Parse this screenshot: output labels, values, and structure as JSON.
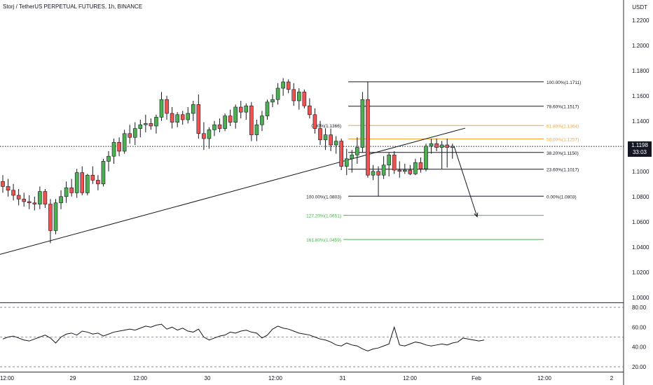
{
  "header": {
    "title": "Storj / TetherUS PERPETUAL FUTURES, 1h, BINANCE",
    "currency": "USDT"
  },
  "price_tag": {
    "price": "1.1198",
    "countdown": "33:03"
  },
  "chart_data": [
    {
      "type": "candlestick",
      "title": "Storj / TetherUS PERPETUAL FUTURES, 1h, BINANCE",
      "y_unit": "USDT",
      "y_ticks": [
        "1.2200",
        "1.2000",
        "1.1800",
        "1.1600",
        "1.1400",
        "1.1200",
        "1.1000",
        "1.0800",
        "1.0600",
        "1.0400",
        "1.0200",
        "1.0000"
      ],
      "ylim": [
        0.996,
        1.236
      ],
      "x_ticks": [
        "12:00",
        "29",
        "12:00",
        "30",
        "12:00",
        "31",
        "12:00",
        "Feb",
        "12:00",
        "2"
      ],
      "current_price": 1.1198,
      "colors": {
        "up": "#26a69a",
        "up_body": "#4caf50",
        "down": "#ef5350",
        "fib_highlight": "#f7a531",
        "fib_extension": "#4caf50",
        "line": "#131722"
      },
      "candles": [
        {
          "o": 1.092,
          "h": 1.097,
          "l": 1.083,
          "c": 1.088
        },
        {
          "o": 1.088,
          "h": 1.094,
          "l": 1.08,
          "c": 1.085
        },
        {
          "o": 1.085,
          "h": 1.09,
          "l": 1.077,
          "c": 1.081
        },
        {
          "o": 1.081,
          "h": 1.086,
          "l": 1.073,
          "c": 1.078
        },
        {
          "o": 1.078,
          "h": 1.083,
          "l": 1.072,
          "c": 1.076
        },
        {
          "o": 1.076,
          "h": 1.081,
          "l": 1.07,
          "c": 1.075
        },
        {
          "o": 1.075,
          "h": 1.08,
          "l": 1.069,
          "c": 1.074
        },
        {
          "o": 1.074,
          "h": 1.088,
          "l": 1.07,
          "c": 1.084
        },
        {
          "o": 1.084,
          "h": 1.086,
          "l": 1.071,
          "c": 1.074
        },
        {
          "o": 1.074,
          "h": 1.078,
          "l": 1.043,
          "c": 1.053
        },
        {
          "o": 1.053,
          "h": 1.078,
          "l": 1.05,
          "c": 1.075
        },
        {
          "o": 1.075,
          "h": 1.085,
          "l": 1.07,
          "c": 1.08
        },
        {
          "o": 1.08,
          "h": 1.092,
          "l": 1.075,
          "c": 1.087
        },
        {
          "o": 1.087,
          "h": 1.094,
          "l": 1.08,
          "c": 1.083
        },
        {
          "o": 1.083,
          "h": 1.102,
          "l": 1.079,
          "c": 1.099
        },
        {
          "o": 1.099,
          "h": 1.104,
          "l": 1.081,
          "c": 1.083
        },
        {
          "o": 1.083,
          "h": 1.098,
          "l": 1.081,
          "c": 1.097
        },
        {
          "o": 1.097,
          "h": 1.104,
          "l": 1.09,
          "c": 1.093
        },
        {
          "o": 1.093,
          "h": 1.097,
          "l": 1.085,
          "c": 1.09
        },
        {
          "o": 1.09,
          "h": 1.11,
          "l": 1.088,
          "c": 1.108
        },
        {
          "o": 1.108,
          "h": 1.116,
          "l": 1.1,
          "c": 1.112
        },
        {
          "o": 1.112,
          "h": 1.126,
          "l": 1.106,
          "c": 1.123
        },
        {
          "o": 1.123,
          "h": 1.127,
          "l": 1.112,
          "c": 1.116
        },
        {
          "o": 1.116,
          "h": 1.133,
          "l": 1.114,
          "c": 1.13
        },
        {
          "o": 1.13,
          "h": 1.137,
          "l": 1.122,
          "c": 1.127
        },
        {
          "o": 1.127,
          "h": 1.139,
          "l": 1.121,
          "c": 1.134
        },
        {
          "o": 1.134,
          "h": 1.141,
          "l": 1.127,
          "c": 1.137
        },
        {
          "o": 1.137,
          "h": 1.145,
          "l": 1.131,
          "c": 1.138
        },
        {
          "o": 1.138,
          "h": 1.142,
          "l": 1.133,
          "c": 1.136
        },
        {
          "o": 1.136,
          "h": 1.145,
          "l": 1.13,
          "c": 1.143
        },
        {
          "o": 1.143,
          "h": 1.163,
          "l": 1.14,
          "c": 1.157
        },
        {
          "o": 1.157,
          "h": 1.16,
          "l": 1.141,
          "c": 1.146
        },
        {
          "o": 1.146,
          "h": 1.151,
          "l": 1.134,
          "c": 1.139
        },
        {
          "o": 1.139,
          "h": 1.147,
          "l": 1.135,
          "c": 1.145
        },
        {
          "o": 1.145,
          "h": 1.148,
          "l": 1.137,
          "c": 1.141
        },
        {
          "o": 1.141,
          "h": 1.151,
          "l": 1.138,
          "c": 1.146
        },
        {
          "o": 1.146,
          "h": 1.156,
          "l": 1.14,
          "c": 1.153
        },
        {
          "o": 1.153,
          "h": 1.161,
          "l": 1.126,
          "c": 1.13
        },
        {
          "o": 1.13,
          "h": 1.139,
          "l": 1.117,
          "c": 1.126
        },
        {
          "o": 1.126,
          "h": 1.135,
          "l": 1.118,
          "c": 1.133
        },
        {
          "o": 1.133,
          "h": 1.14,
          "l": 1.128,
          "c": 1.137
        },
        {
          "o": 1.137,
          "h": 1.142,
          "l": 1.131,
          "c": 1.134
        },
        {
          "o": 1.134,
          "h": 1.146,
          "l": 1.132,
          "c": 1.144
        },
        {
          "o": 1.144,
          "h": 1.149,
          "l": 1.136,
          "c": 1.139
        },
        {
          "o": 1.139,
          "h": 1.153,
          "l": 1.134,
          "c": 1.151
        },
        {
          "o": 1.151,
          "h": 1.156,
          "l": 1.142,
          "c": 1.147
        },
        {
          "o": 1.147,
          "h": 1.154,
          "l": 1.141,
          "c": 1.152
        },
        {
          "o": 1.152,
          "h": 1.155,
          "l": 1.124,
          "c": 1.129
        },
        {
          "o": 1.129,
          "h": 1.141,
          "l": 1.124,
          "c": 1.137
        },
        {
          "o": 1.137,
          "h": 1.148,
          "l": 1.132,
          "c": 1.144
        },
        {
          "o": 1.144,
          "h": 1.157,
          "l": 1.141,
          "c": 1.155
        },
        {
          "o": 1.155,
          "h": 1.161,
          "l": 1.151,
          "c": 1.157
        },
        {
          "o": 1.157,
          "h": 1.17,
          "l": 1.153,
          "c": 1.166
        },
        {
          "o": 1.166,
          "h": 1.174,
          "l": 1.16,
          "c": 1.171
        },
        {
          "o": 1.171,
          "h": 1.173,
          "l": 1.162,
          "c": 1.165
        },
        {
          "o": 1.165,
          "h": 1.17,
          "l": 1.152,
          "c": 1.156
        },
        {
          "o": 1.156,
          "h": 1.166,
          "l": 1.149,
          "c": 1.163
        },
        {
          "o": 1.163,
          "h": 1.165,
          "l": 1.15,
          "c": 1.152
        },
        {
          "o": 1.152,
          "h": 1.158,
          "l": 1.142,
          "c": 1.145
        },
        {
          "o": 1.145,
          "h": 1.15,
          "l": 1.13,
          "c": 1.134
        },
        {
          "o": 1.134,
          "h": 1.14,
          "l": 1.121,
          "c": 1.125
        },
        {
          "o": 1.125,
          "h": 1.134,
          "l": 1.117,
          "c": 1.129
        },
        {
          "o": 1.129,
          "h": 1.134,
          "l": 1.116,
          "c": 1.121
        },
        {
          "o": 1.121,
          "h": 1.128,
          "l": 1.114,
          "c": 1.124
        },
        {
          "o": 1.124,
          "h": 1.126,
          "l": 1.101,
          "c": 1.104
        },
        {
          "o": 1.104,
          "h": 1.118,
          "l": 1.097,
          "c": 1.11
        },
        {
          "o": 1.11,
          "h": 1.117,
          "l": 1.099,
          "c": 1.113
        },
        {
          "o": 1.113,
          "h": 1.127,
          "l": 1.106,
          "c": 1.119
        },
        {
          "o": 1.119,
          "h": 1.163,
          "l": 1.115,
          "c": 1.157
        },
        {
          "o": 1.157,
          "h": 1.171,
          "l": 1.095,
          "c": 1.097
        },
        {
          "o": 1.097,
          "h": 1.105,
          "l": 1.093,
          "c": 1.1
        },
        {
          "o": 1.1,
          "h": 1.104,
          "l": 1.08,
          "c": 1.097
        },
        {
          "o": 1.097,
          "h": 1.112,
          "l": 1.094,
          "c": 1.105
        },
        {
          "o": 1.105,
          "h": 1.115,
          "l": 1.096,
          "c": 1.113
        },
        {
          "o": 1.113,
          "h": 1.116,
          "l": 1.098,
          "c": 1.101
        },
        {
          "o": 1.101,
          "h": 1.108,
          "l": 1.095,
          "c": 1.1
        },
        {
          "o": 1.1,
          "h": 1.106,
          "l": 1.098,
          "c": 1.101
        },
        {
          "o": 1.101,
          "h": 1.105,
          "l": 1.097,
          "c": 1.098
        },
        {
          "o": 1.098,
          "h": 1.11,
          "l": 1.097,
          "c": 1.107
        },
        {
          "o": 1.107,
          "h": 1.111,
          "l": 1.099,
          "c": 1.102
        },
        {
          "o": 1.102,
          "h": 1.122,
          "l": 1.1,
          "c": 1.12
        },
        {
          "o": 1.12,
          "h": 1.126,
          "l": 1.114,
          "c": 1.122
        },
        {
          "o": 1.122,
          "h": 1.126,
          "l": 1.116,
          "c": 1.119
        },
        {
          "o": 1.119,
          "h": 1.124,
          "l": 1.102,
          "c": 1.121
        },
        {
          "o": 1.121,
          "h": 1.126,
          "l": 1.103,
          "c": 1.119
        },
        {
          "o": 1.119,
          "h": 1.122,
          "l": 1.11,
          "c": 1.12
        }
      ],
      "trendline": [
        {
          "from": 1.0341,
          "to": 1.1343
        }
      ],
      "fib_retracement": [
        {
          "label": "100.00%(1.1711)",
          "value": 1.1711,
          "style": "black"
        },
        {
          "label": "78.60%(1.1517)",
          "value": 1.1517,
          "style": "black"
        },
        {
          "label": "61.80%(1.1364)",
          "value": 1.1364,
          "style": "orange"
        },
        {
          "label": "50.00%(1.1257)",
          "value": 1.1257,
          "style": "orange"
        },
        {
          "label": "38.20%(1.1150)",
          "value": 1.115,
          "style": "black"
        },
        {
          "label": "23.60%(1.1017)",
          "value": 1.1017,
          "style": "black"
        },
        {
          "label": "0.00%(1.0803)",
          "value": 1.0803,
          "style": "black"
        }
      ],
      "fib_extension": [
        {
          "label": "0.00%(1.1366)",
          "value": 1.1366,
          "style": "black"
        },
        {
          "label": "100.00%(1.0803)",
          "value": 1.0803,
          "style": "black"
        },
        {
          "label": "127.20%(1.0651)",
          "value": 1.0651,
          "style": "green"
        },
        {
          "label": "161.80%(1.0459)",
          "value": 1.0459,
          "style": "green"
        }
      ],
      "arrow": {
        "from": 1.12,
        "to": 1.064
      }
    },
    {
      "type": "line",
      "title": "",
      "y_ticks": [
        "80.00",
        "60.00",
        "40.00",
        "20.00"
      ],
      "ylim": [
        15,
        85
      ],
      "levels": [
        80,
        50,
        20
      ],
      "values": [
        48,
        50,
        51,
        49,
        47,
        46,
        48,
        50,
        52,
        49,
        44,
        50,
        53,
        54,
        52,
        56,
        55,
        53,
        54,
        51,
        53,
        55,
        56,
        57,
        58,
        57,
        59,
        61,
        60,
        62,
        63,
        58,
        60,
        57,
        59,
        56,
        55,
        58,
        50,
        47,
        49,
        51,
        52,
        55,
        54,
        56,
        57,
        55,
        54,
        49,
        52,
        58,
        61,
        59,
        58,
        56,
        54,
        53,
        52,
        50,
        48,
        47,
        45,
        42,
        41,
        44,
        42,
        41,
        38,
        36,
        38,
        39,
        41,
        43,
        60,
        42,
        41,
        43,
        45,
        44,
        42,
        41,
        42,
        43,
        42,
        44,
        45,
        49,
        48,
        47,
        46,
        47
      ]
    }
  ]
}
